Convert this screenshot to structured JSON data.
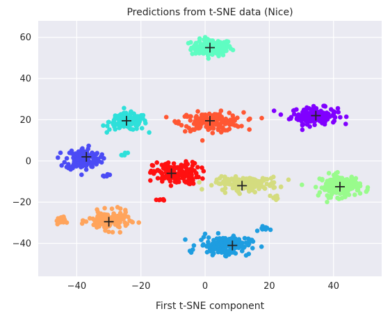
{
  "chart_data": {
    "type": "scatter",
    "title": "Predictions from t-SNE data (Nice)",
    "xlabel": "First t-SNE component",
    "ylabel": "",
    "xlim": [
      -52,
      55
    ],
    "ylim": [
      -56,
      68
    ],
    "x_ticks": [
      -40,
      -20,
      0,
      20,
      40
    ],
    "y_ticks": [
      -40,
      -20,
      0,
      20,
      40,
      60
    ],
    "grid": true,
    "background": "#eaeaf2",
    "grid_color": "#ffffff",
    "clusters": [
      {
        "color": "#5ffdc2",
        "points_center": [
          2,
          55
        ],
        "spread": [
          7,
          4.5
        ],
        "count": 150,
        "centroid": [
          1.5,
          55
        ]
      },
      {
        "color": "#8000ff",
        "points_center": [
          34,
          22
        ],
        "spread": [
          8,
          4.5
        ],
        "count": 150,
        "centroid": [
          34.5,
          22
        ]
      },
      {
        "color": "#2ee0da",
        "points_center": [
          -24,
          19
        ],
        "spread": [
          6.5,
          4.5
        ],
        "count": 150,
        "centroid": [
          -24.5,
          19.5
        ]
      },
      {
        "color": "#ff5733",
        "points_center": [
          2,
          19
        ],
        "spread": [
          11,
          5
        ],
        "count": 160,
        "centroid": [
          1.5,
          19.5
        ]
      },
      {
        "color": "#4b4bf5",
        "points_center": [
          -38,
          1
        ],
        "spread": [
          6,
          6
        ],
        "count": 150,
        "centroid": [
          -37,
          2
        ]
      },
      {
        "color": "#ff1010",
        "points_center": [
          -9,
          -6
        ],
        "spread": [
          8,
          6
        ],
        "count": 160,
        "centroid": [
          -10.5,
          -6
        ]
      },
      {
        "color": "#d4dc7f",
        "points_center": [
          13,
          -11
        ],
        "spread": [
          11,
          3.5
        ],
        "count": 150,
        "centroid": [
          11.5,
          -12
        ]
      },
      {
        "color": "#99fb8c",
        "points_center": [
          42,
          -12
        ],
        "spread": [
          7,
          6
        ],
        "count": 150,
        "centroid": [
          42,
          -12.5
        ]
      },
      {
        "color": "#ffa45c",
        "points_center": [
          -30,
          -29
        ],
        "spread": [
          7,
          5
        ],
        "count": 150,
        "centroid": [
          -30,
          -29.5
        ]
      },
      {
        "color": "#1e9de0",
        "points_center": [
          6,
          -41
        ],
        "spread": [
          9,
          5
        ],
        "count": 150,
        "centroid": [
          8.5,
          -41
        ]
      }
    ],
    "extra_clusters": [
      {
        "color": "#ffa45c",
        "points_center": [
          -45,
          -29
        ],
        "spread": [
          1.5,
          2
        ],
        "count": 20
      },
      {
        "color": "#1e9de0",
        "points_center": [
          18,
          -33
        ],
        "spread": [
          2,
          2
        ],
        "count": 10
      },
      {
        "color": "#4b4bf5",
        "points_center": [
          -31,
          -7
        ],
        "spread": [
          1.5,
          1
        ],
        "count": 6
      },
      {
        "color": "#2ee0da",
        "points_center": [
          -25,
          3
        ],
        "spread": [
          1,
          1
        ],
        "count": 5
      },
      {
        "color": "#ff1010",
        "points_center": [
          -14,
          -19
        ],
        "spread": [
          1.5,
          0.6
        ],
        "count": 6
      },
      {
        "color": "#d4dc7f",
        "points_center": [
          22,
          -18
        ],
        "spread": [
          1.5,
          1.5
        ],
        "count": 8
      }
    ]
  }
}
